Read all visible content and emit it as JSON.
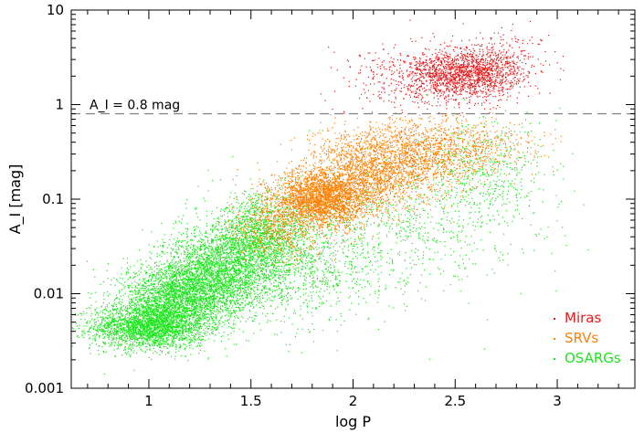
{
  "chart_data": {
    "type": "scatter",
    "title": "",
    "xlabel": "log P",
    "ylabel": "A_I [mag]",
    "xlim": [
      0.62,
      3.38
    ],
    "ylim": [
      0.001,
      10
    ],
    "yscale": "log",
    "grid": false,
    "legend_position": "bottom-right",
    "x_ticks": [
      {
        "value": 1,
        "label": "1"
      },
      {
        "value": 1.5,
        "label": "1.5"
      },
      {
        "value": 2,
        "label": "2"
      },
      {
        "value": 2.5,
        "label": "2.5"
      },
      {
        "value": 3,
        "label": "3"
      }
    ],
    "y_ticks": [
      {
        "value": 0.001,
        "label": "0.001"
      },
      {
        "value": 0.01,
        "label": "0.01"
      },
      {
        "value": 0.1,
        "label": "0.1"
      },
      {
        "value": 1,
        "label": "1"
      },
      {
        "value": 10,
        "label": "10"
      }
    ],
    "annotations": [
      {
        "type": "hline",
        "y": 0.8,
        "style": "dashed",
        "color": "#808080",
        "label": "A_I = 0.8 mag"
      }
    ],
    "series": [
      {
        "name": "Miras",
        "color": "#e8191a",
        "clusters": [
          {
            "center": [
              2.53,
              2.1
            ],
            "spread": [
              0.14,
              0.13
            ],
            "n": 1500
          },
          {
            "center": [
              2.3,
              1.6
            ],
            "spread": [
              0.18,
              0.22
            ],
            "n": 350
          },
          {
            "center": [
              2.72,
              2.7
            ],
            "spread": [
              0.12,
              0.18
            ],
            "n": 250
          }
        ],
        "min_y": 0.8
      },
      {
        "name": "SRVs",
        "color": "#ff7f00",
        "clusters": [
          {
            "center": [
              1.85,
              0.1
            ],
            "spread": [
              0.12,
              0.15
            ],
            "n": 2600
          },
          {
            "center": [
              2.1,
              0.2
            ],
            "spread": [
              0.16,
              0.2
            ],
            "n": 1700
          },
          {
            "center": [
              2.35,
              0.33
            ],
            "spread": [
              0.18,
              0.2
            ],
            "n": 1000
          },
          {
            "center": [
              1.62,
              0.05
            ],
            "spread": [
              0.1,
              0.18
            ],
            "n": 500
          },
          {
            "center": [
              2.6,
              0.35
            ],
            "spread": [
              0.18,
              0.15
            ],
            "n": 300
          }
        ],
        "max_y": 0.8
      },
      {
        "name": "OSARGs",
        "color": "#1ee61e",
        "clusters": [
          {
            "center": [
              1.0,
              0.0045
            ],
            "spread": [
              0.14,
              0.12
            ],
            "n": 2500
          },
          {
            "center": [
              1.15,
              0.009
            ],
            "spread": [
              0.14,
              0.18
            ],
            "n": 2500
          },
          {
            "center": [
              1.35,
              0.018
            ],
            "spread": [
              0.14,
              0.22
            ],
            "n": 2200
          },
          {
            "center": [
              1.55,
              0.04
            ],
            "spread": [
              0.12,
              0.22
            ],
            "n": 1400
          },
          {
            "center": [
              1.75,
              0.02
            ],
            "spread": [
              0.2,
              0.3
            ],
            "n": 900
          },
          {
            "center": [
              2.25,
              0.05
            ],
            "spread": [
              0.3,
              0.35
            ],
            "n": 700
          },
          {
            "center": [
              2.65,
              0.2
            ],
            "spread": [
              0.15,
              0.28
            ],
            "n": 500
          }
        ]
      }
    ]
  }
}
